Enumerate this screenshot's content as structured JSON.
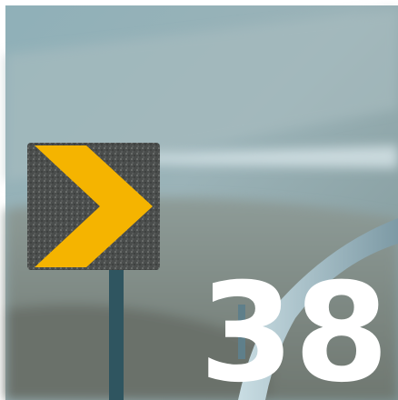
{
  "image": {
    "label": "38"
  }
}
